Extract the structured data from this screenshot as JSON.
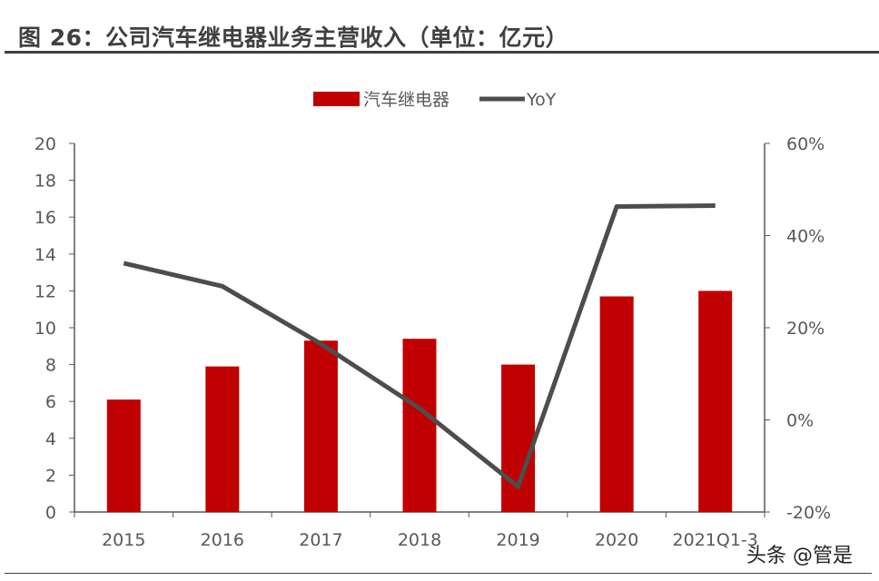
{
  "title": "图 26：公司汽车继电器业务主营收入（单位：亿元）",
  "watermark": "头条 @管是",
  "chart_data": {
    "type": "bar+line",
    "title": "",
    "categories": [
      "2015",
      "2016",
      "2017",
      "2018",
      "2019",
      "2020",
      "2021Q1-3"
    ],
    "series": [
      {
        "name": "汽车继电器",
        "type": "bar",
        "axis": "left",
        "color": "#C00000",
        "values": [
          6.1,
          7.9,
          9.3,
          9.4,
          8.0,
          11.7,
          12.0
        ]
      },
      {
        "name": "YoY",
        "type": "line",
        "axis": "right",
        "color": "#4D4D4D",
        "values": [
          34,
          29,
          16.5,
          2.5,
          -14.5,
          46.3,
          46.5
        ]
      }
    ],
    "left_axis": {
      "ylim": [
        0,
        20
      ],
      "ticks": [
        "0",
        "2",
        "4",
        "6",
        "8",
        "10",
        "12",
        "14",
        "16",
        "18",
        "20"
      ]
    },
    "right_axis": {
      "ylim": [
        -20,
        60
      ],
      "unit": "%",
      "ticks": [
        "-20%",
        "0%",
        "20%",
        "40%",
        "60%"
      ]
    },
    "legend": "top-center",
    "grid": false
  }
}
